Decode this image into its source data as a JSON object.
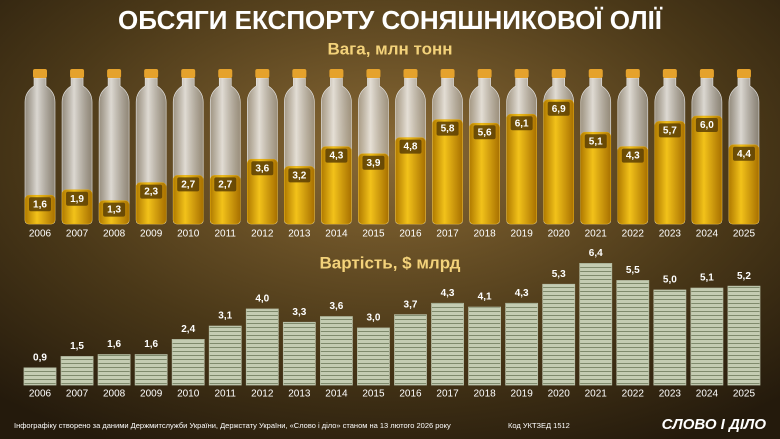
{
  "title": "ОБСЯГИ ЕКСПОРТУ СОНЯШНИКОВОЇ ОЛІЇ",
  "chart_data": [
    {
      "type": "bar",
      "subtitle": "Вага, млн тонн",
      "color": "#e2a90c",
      "categories": [
        "2006",
        "2007",
        "2008",
        "2009",
        "2010",
        "2011",
        "2012",
        "2013",
        "2014",
        "2015",
        "2016",
        "2017",
        "2018",
        "2019",
        "2020",
        "2021",
        "2022",
        "2023",
        "2024",
        "2025"
      ],
      "values": [
        1.6,
        1.9,
        1.3,
        2.3,
        2.7,
        2.7,
        3.6,
        3.2,
        4.3,
        3.9,
        4.8,
        5.8,
        5.6,
        6.1,
        6.9,
        5.1,
        4.3,
        5.7,
        6.0,
        4.4
      ],
      "value_labels": [
        "1,6",
        "1,9",
        "1,3",
        "2,3",
        "2,7",
        "2,7",
        "3,6",
        "3,2",
        "4,3",
        "3,9",
        "4,8",
        "5,8",
        "5,6",
        "6,1",
        "6,9",
        "5,1",
        "4,3",
        "5,7",
        "6,0",
        "4,4"
      ]
    },
    {
      "type": "bar",
      "subtitle": "Вартість, $ млрд",
      "color": "#b7bfa6",
      "categories": [
        "2006",
        "2007",
        "2008",
        "2009",
        "2010",
        "2011",
        "2012",
        "2013",
        "2014",
        "2015",
        "2016",
        "2017",
        "2018",
        "2019",
        "2020",
        "2021",
        "2022",
        "2023",
        "2024",
        "2025"
      ],
      "values": [
        0.9,
        1.5,
        1.6,
        1.6,
        2.4,
        3.1,
        4.0,
        3.3,
        3.6,
        3.0,
        3.7,
        4.3,
        4.1,
        4.3,
        5.3,
        6.4,
        5.5,
        5.0,
        5.1,
        5.2
      ],
      "value_labels": [
        "0,9",
        "1,5",
        "1,6",
        "1,6",
        "2,4",
        "3,1",
        "4,0",
        "3,3",
        "3,6",
        "3,0",
        "3,7",
        "4,3",
        "4,1",
        "4,3",
        "5,3",
        "6,4",
        "5,5",
        "5,0",
        "5,1",
        "5,2"
      ]
    }
  ],
  "footer": {
    "source": "Інфографіку створено за даними Держмитслужби України, Держстату України, «Слово і діло» станом на 13 лютого 2026 року",
    "code": "Код УКТЗЕД 1512",
    "logo": "СЛОВО І ДІЛО"
  }
}
